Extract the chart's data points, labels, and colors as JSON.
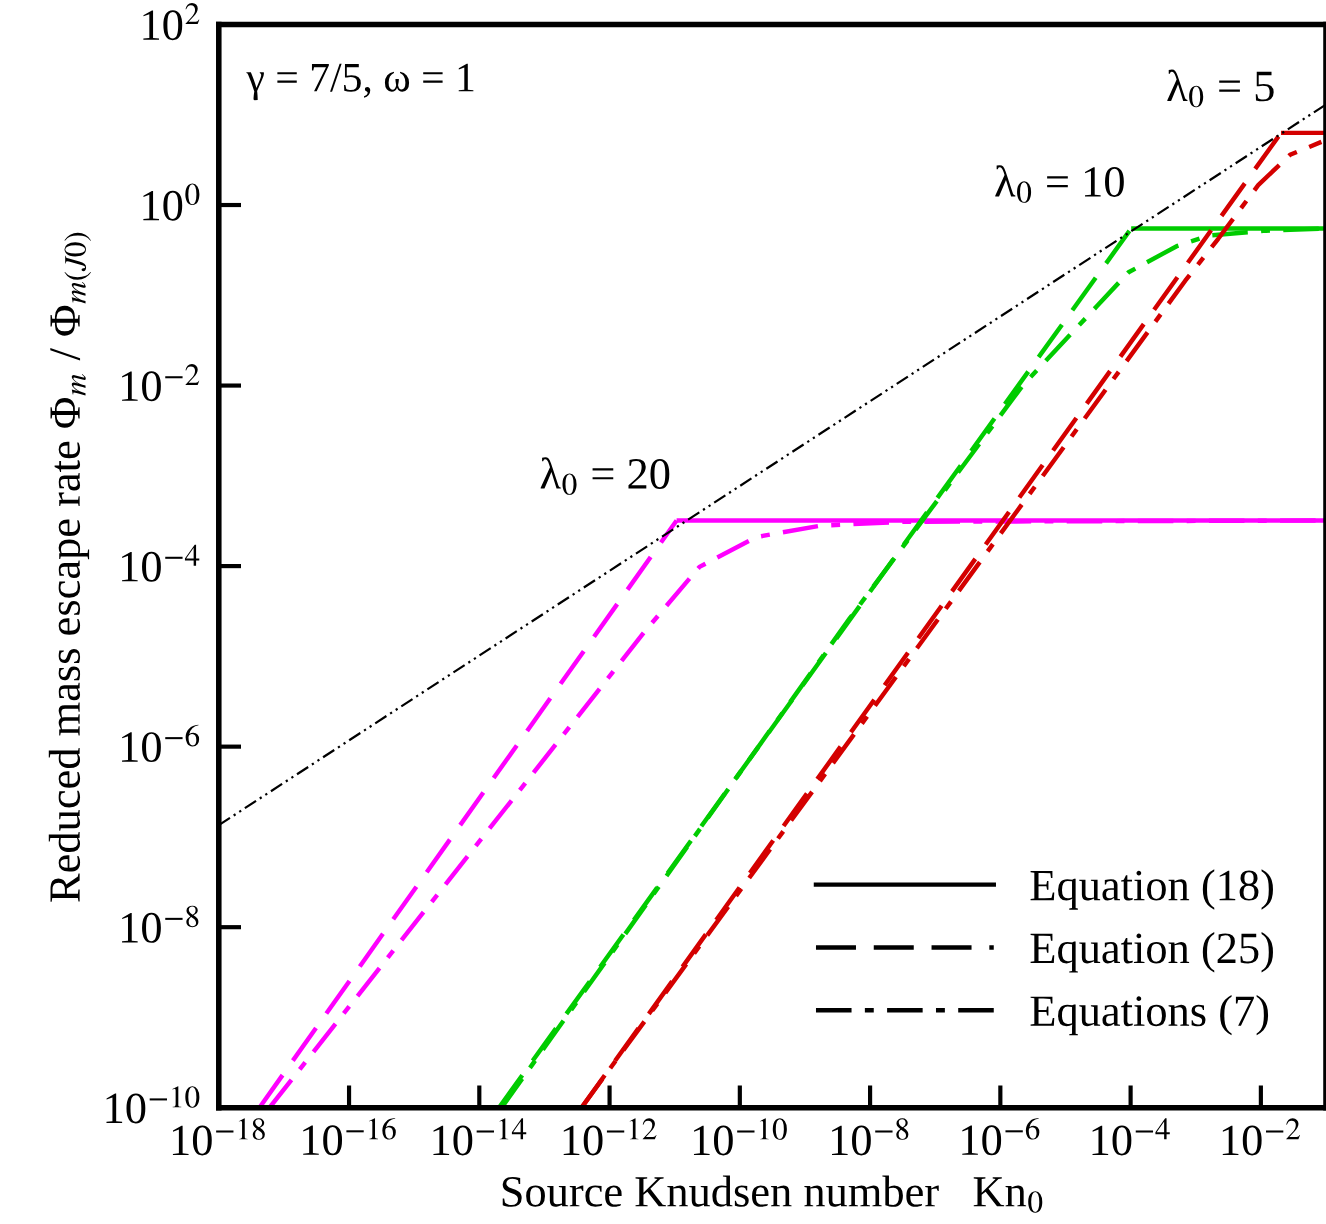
{
  "chart_data": {
    "type": "line",
    "xlabel": "Source Knudsen number   Kn$_{0}$",
    "ylabel": "Reduced mass escape rate Φ$_{m}$ / Φ$_{m(J0)}$",
    "log": "xy",
    "xlim": [
      1e-18,
      0.1
    ],
    "ylim": [
      1e-10,
      100
    ],
    "xticks": [
      {
        "value": 1e-18,
        "label": "10$^{−18}$"
      },
      {
        "value": 1e-16,
        "label": "10$^{−16}$"
      },
      {
        "value": 1e-14,
        "label": "10$^{−14}$"
      },
      {
        "value": 1e-12,
        "label": "10$^{−12}$"
      },
      {
        "value": 1e-10,
        "label": "10$^{−10}$"
      },
      {
        "value": 1e-08,
        "label": "10$^{−8}$"
      },
      {
        "value": 1e-06,
        "label": "10$^{−6}$"
      },
      {
        "value": 0.0001,
        "label": "10$^{−4}$"
      },
      {
        "value": 0.01,
        "label": "10$^{−2}$"
      }
    ],
    "yticks": [
      {
        "value": 1e-10,
        "label": "10$^{−10}$"
      },
      {
        "value": 1e-08,
        "label": "10$^{−8}$"
      },
      {
        "value": 1e-06,
        "label": "10$^{−6}$"
      },
      {
        "value": 0.0001,
        "label": "10$^{−4}$"
      },
      {
        "value": 0.01,
        "label": "10$^{−2}$"
      },
      {
        "value": 1,
        "label": "10$^{0}$"
      },
      {
        "value": 100,
        "label": "10$^{2}$"
      }
    ],
    "grid": false,
    "series": [
      {
        "color": "#ff00ff",
        "line_style": "solid",
        "x": [
          1.07e-11,
          0.1
        ],
        "values": [
          0.00032,
          0.00032
        ]
      },
      {
        "color": "#ff00ff",
        "line_style": "dashed",
        "x": [
          4.2e-18,
          1.07e-11
        ],
        "values": [
          1e-10,
          0.00032
        ]
      },
      {
        "color": "#ff00ff",
        "line_style": "dashdot",
        "x": [
          6e-18,
          3.6e-12,
          2.4e-11,
          1.8e-10,
          1.7e-09,
          3.2e-08,
          0.1
        ],
        "values": [
          1e-10,
          1.95e-05,
          9.8e-05,
          0.00021,
          0.00028,
          0.00031,
          0.00032
        ]
      },
      {
        "color": "#00cc00",
        "line_style": "solid",
        "x": [
          0.000102,
          0.1
        ],
        "values": [
          0.55,
          0.55
        ]
      },
      {
        "color": "#00cc00",
        "line_style": "dashed",
        "x": [
          2e-14,
          0.000102
        ],
        "values": [
          1e-10,
          0.55
        ]
      },
      {
        "color": "#00cc00",
        "line_style": "dashdot",
        "x": [
          2.2e-14,
          4.8e-09,
          2.2e-06,
          3e-05,
          9.3e-05,
          0.00051,
          0.0016,
          0.012,
          0.1
        ],
        "values": [
          1e-10,
          2.6e-05,
          0.01,
          0.075,
          0.18,
          0.35,
          0.46,
          0.52,
          0.55
        ]
      },
      {
        "color": "#d40000",
        "line_style": "solid",
        "x": [
          0.0204,
          0.1
        ],
        "values": [
          6.3,
          6.3
        ]
      },
      {
        "color": "#d40000",
        "line_style": "dashed",
        "x": [
          3.7e-13,
          0.0204
        ],
        "values": [
          1e-10,
          6.3
        ]
      },
      {
        "color": "#d40000",
        "line_style": "dashdot",
        "x": [
          3.7e-13,
          0.00069,
          0.0022,
          0.0091,
          0.028,
          0.085
        ],
        "values": [
          1e-10,
          0.145,
          0.42,
          1.66,
          3.6,
          5.0
        ]
      },
      {
        "color": "#000000",
        "line_style": "dashdotdot",
        "x": [
          1e-18,
          0.1
        ],
        "values": [
          1.35e-07,
          13
        ]
      }
    ],
    "annotations": [
      "γ = 7/5, ω = 1",
      "Equation (18)",
      "Equation (25)",
      "Equations (7)",
      {
        "text": "λ$_{0}$ = 20",
        "x": 1.07e-11,
        "y": 0.00032
      },
      {
        "text": "λ$_{0}$ = 10",
        "x": 0.000102,
        "y": 0.55
      },
      {
        "text": "λ$_{0}$ = 5",
        "x": 0.0204,
        "y": 6.3
      }
    ]
  }
}
